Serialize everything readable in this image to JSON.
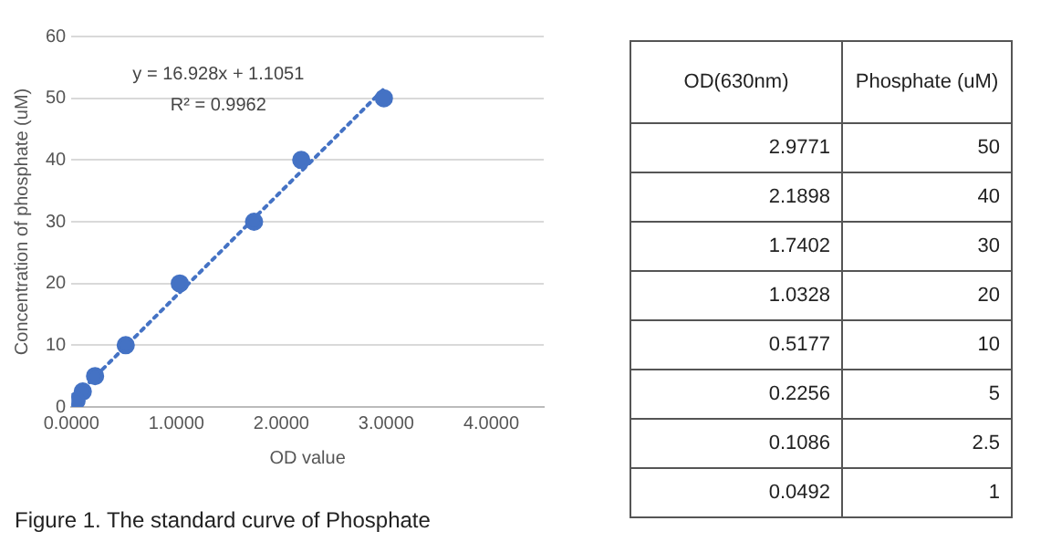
{
  "chart_data": [
    {
      "type": "scatter",
      "xlabel": "OD value",
      "ylabel": "Concentration of phosphate (uM)",
      "series": [
        {
          "color": "#4472c4",
          "x": [
            2.9771,
            2.1898,
            1.7402,
            1.0328,
            0.5177,
            0.2256,
            0.1086,
            0.0492
          ],
          "values": [
            50,
            40,
            30,
            20,
            10,
            5,
            2.5,
            1
          ],
          "marker": "circle"
        },
        {
          "type": "line",
          "color": "#4472c4",
          "x": [
            0.0492,
            2.9771
          ],
          "values": [
            1.9,
            51.5
          ],
          "line_style": "dotted",
          "marker": "none"
        }
      ],
      "xlim": [
        0,
        4.5
      ],
      "xticks": [
        {
          "value": 0,
          "label": "0.0000"
        },
        {
          "value": 1,
          "label": "1.0000"
        },
        {
          "value": 2,
          "label": "2.0000"
        },
        {
          "value": 3,
          "label": "3.0000"
        },
        {
          "value": 4,
          "label": "4.0000"
        }
      ],
      "ylim": [
        0,
        60
      ],
      "yticks": [
        0,
        10,
        20,
        30,
        40,
        50,
        60
      ],
      "grid": "y",
      "legend": false,
      "annotations": [
        "y = 16.928x + 1.1051",
        "R² = 0.9962",
        "Figure 1. The standard curve of Phosphate"
      ]
    },
    {
      "type": "other",
      "annotations": [
        "OD(630nm)",
        "Phosphate (uM)",
        "2.9771",
        "50",
        "2.1898",
        "40",
        "1.7402",
        "30",
        "1.0328",
        "20",
        "0.5177",
        "10",
        "0.2256",
        "5",
        "0.1086",
        "2.5",
        "0.0492",
        "1"
      ]
    }
  ]
}
